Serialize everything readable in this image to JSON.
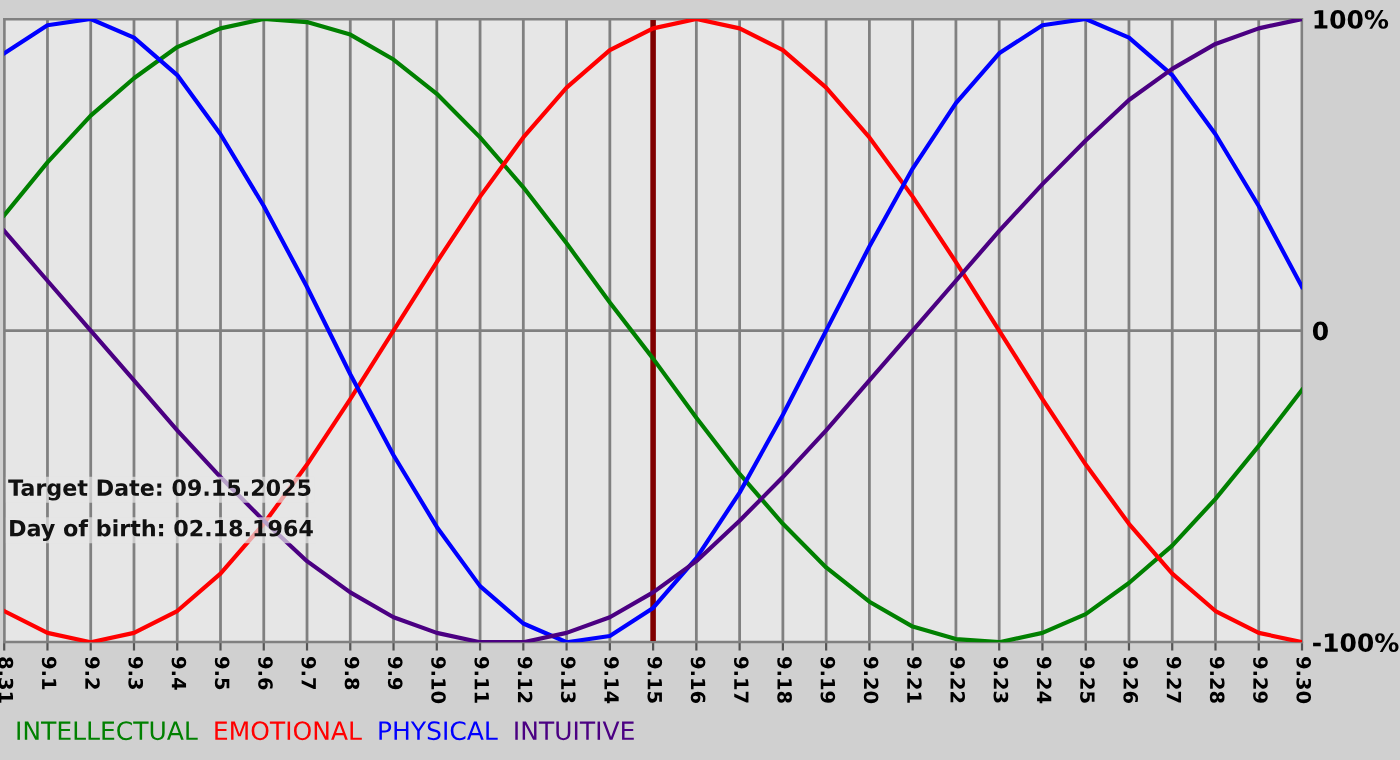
{
  "chart_data": {
    "type": "line",
    "categories": [
      "8.31",
      "9.1",
      "9.2",
      "9.3",
      "9.4",
      "9.5",
      "9.6",
      "9.7",
      "9.8",
      "9.9",
      "9.10",
      "9.11",
      "9.12",
      "9.13",
      "9.14",
      "9.15",
      "9.16",
      "9.17",
      "9.18",
      "9.19",
      "9.20",
      "9.21",
      "9.22",
      "9.23",
      "9.24",
      "9.25",
      "9.26",
      "9.27",
      "9.28",
      "9.29",
      "9.30"
    ],
    "series": [
      {
        "name": "INTELLECTUAL",
        "color": "#008000",
        "values": [
          37,
          54,
          69,
          81,
          91,
          97,
          100,
          99,
          95,
          87,
          76,
          62,
          46,
          28,
          9,
          -9,
          -28,
          -46,
          -62,
          -76,
          -87,
          -95,
          -99,
          -100,
          -97,
          -91,
          -81,
          -69,
          -54,
          -37,
          -19
        ]
      },
      {
        "name": "EMOTIONAL",
        "color": "#ff0000",
        "values": [
          -90,
          -97,
          -100,
          -97,
          -90,
          -78,
          -62,
          -43,
          -22,
          0,
          22,
          43,
          62,
          78,
          90,
          97,
          100,
          97,
          90,
          78,
          62,
          43,
          22,
          0,
          -22,
          -43,
          -62,
          -78,
          -90,
          -97,
          -100
        ]
      },
      {
        "name": "PHYSICAL",
        "color": "#0000ff",
        "values": [
          89,
          98,
          100,
          94,
          82,
          63,
          40,
          14,
          -14,
          -40,
          -63,
          -82,
          -94,
          -100,
          -98,
          -89,
          -73,
          -52,
          -27,
          0,
          27,
          52,
          73,
          89,
          98,
          100,
          94,
          82,
          63,
          40,
          14
        ]
      },
      {
        "name": "INTUITIVE",
        "color": "#4b0082",
        "values": [
          32,
          16,
          0,
          -16,
          -32,
          -47,
          -61,
          -74,
          -84,
          -92,
          -97,
          -100,
          -100,
          -97,
          -92,
          -84,
          -74,
          -61,
          -47,
          -32,
          -16,
          0,
          16,
          32,
          47,
          61,
          74,
          84,
          92,
          97,
          100
        ]
      }
    ],
    "ylim": [
      -100,
      100
    ],
    "yticks": [
      {
        "value": 100,
        "label": "100%"
      },
      0,
      {
        "value": -100,
        "label": "-100%"
      }
    ],
    "ref_lines": [
      {
        "axis": "x",
        "value": "9.15",
        "color": "#800000"
      }
    ],
    "annotations": [
      "Target Date: 09.15.2025",
      "Day of birth: 02.18.1964"
    ],
    "grid": true,
    "legend": "bottom",
    "marker": "none",
    "line_style": "solid"
  }
}
